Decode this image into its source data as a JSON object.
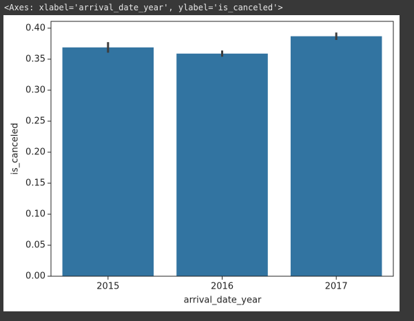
{
  "output_text": "<Axes: xlabel='arrival_date_year', ylabel='is_canceled'>",
  "chart_data": {
    "type": "bar",
    "xlabel": "arrival_date_year",
    "ylabel": "is_canceled",
    "categories": [
      "2015",
      "2016",
      "2017"
    ],
    "values": [
      0.369,
      0.359,
      0.387
    ],
    "errors": [
      0.0085,
      0.005,
      0.006
    ],
    "color": "#3274a1",
    "error_color": "#3d3d3d",
    "ylim": [
      0,
      0.411
    ],
    "yticks": [
      {
        "value": 0,
        "label": "0.00"
      },
      {
        "value": 0.05,
        "label": "0.05"
      },
      {
        "value": 0.1,
        "label": "0.10"
      },
      {
        "value": 0.15,
        "label": "0.15"
      },
      {
        "value": 0.2,
        "label": "0.20"
      },
      {
        "value": 0.25,
        "label": "0.25"
      },
      {
        "value": 0.3,
        "label": "0.30"
      },
      {
        "value": 0.35,
        "label": "0.35"
      },
      {
        "value": 0.4,
        "label": "0.40"
      }
    ],
    "grid": false
  }
}
